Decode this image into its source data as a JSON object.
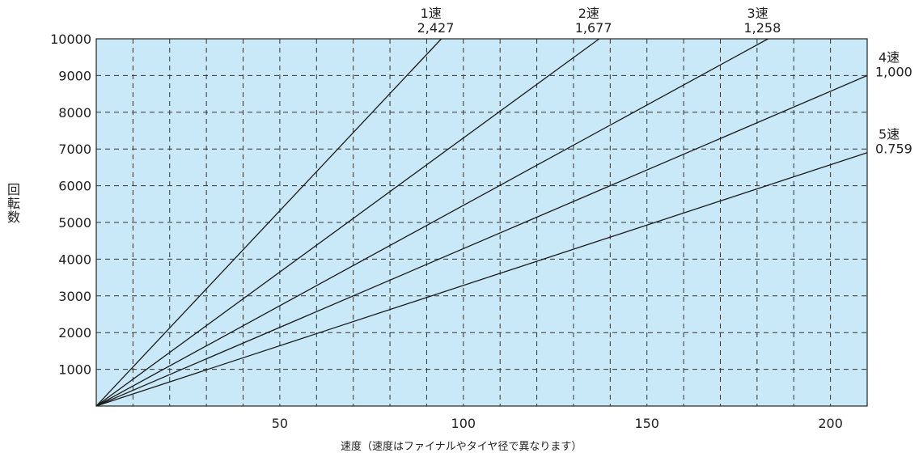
{
  "chart_data": {
    "type": "line",
    "xlabel": "速度（速度はファイナルやタイヤ径で異なります）",
    "ylabel": "回転数",
    "xlim": [
      0,
      210
    ],
    "ylim": [
      0,
      10000
    ],
    "x_ticks": [
      50,
      100,
      150,
      200
    ],
    "y_ticks": [
      1000,
      2000,
      3000,
      4000,
      5000,
      6000,
      7000,
      8000,
      9000,
      10000
    ],
    "x_grid_step": 10,
    "grid": true,
    "plot_background": "#c9e9f8",
    "line_color": "#1a1a1a",
    "series": [
      {
        "gear": "1速",
        "ratio": "2,427",
        "x": [
          0,
          94
        ],
        "y": [
          0,
          10000
        ]
      },
      {
        "gear": "2速",
        "ratio": "1,677",
        "x": [
          0,
          137
        ],
        "y": [
          0,
          10000
        ]
      },
      {
        "gear": "3速",
        "ratio": "1,258",
        "x": [
          0,
          183
        ],
        "y": [
          0,
          10000
        ]
      },
      {
        "gear": "4速",
        "ratio": "1,000",
        "x": [
          0,
          210
        ],
        "y": [
          0,
          9000
        ]
      },
      {
        "gear": "5速",
        "ratio": "0.759",
        "x": [
          0,
          210
        ],
        "y": [
          0,
          6900
        ]
      }
    ]
  }
}
